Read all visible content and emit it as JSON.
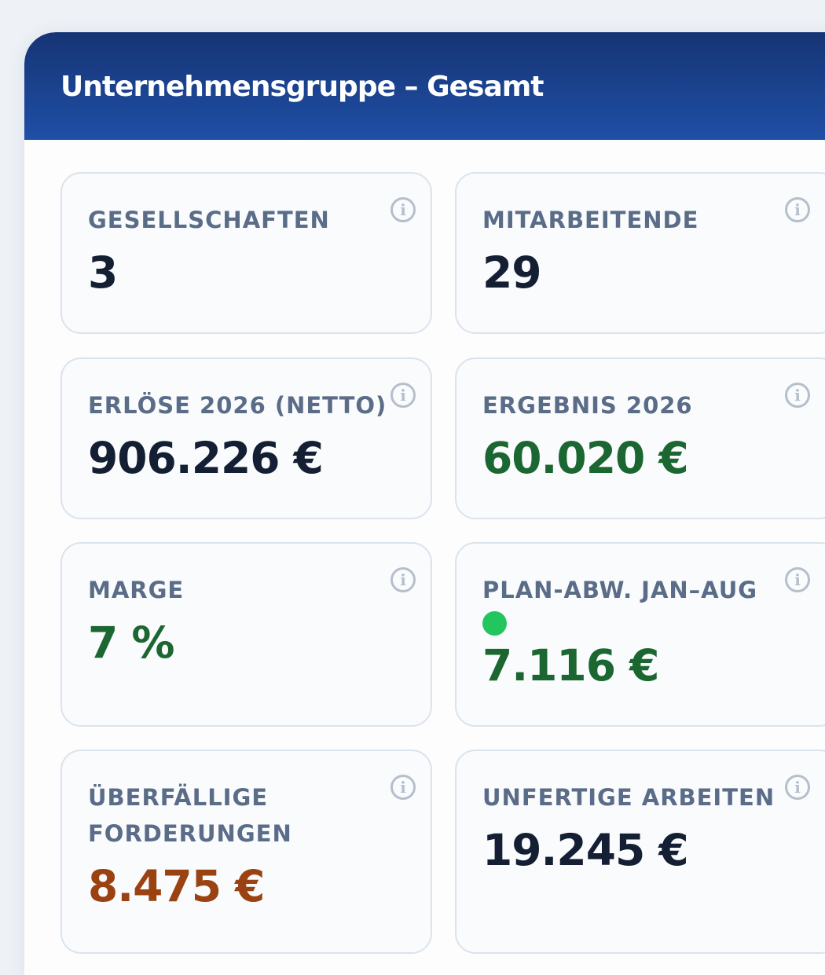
{
  "panel": {
    "title": "Unternehmensgruppe – Gesamt"
  },
  "cards": {
    "gesellschaften": {
      "label": "GESELLSCHAFTEN",
      "value": "3"
    },
    "mitarbeitende": {
      "label": "MITARBEITENDE",
      "value": "29"
    },
    "erloese": {
      "label": "ERLÖSE 2026 (NETTO)",
      "value": "906.226 €"
    },
    "ergebnis": {
      "label": "ERGEBNIS 2026",
      "value": "60.020 €"
    },
    "marge": {
      "label": "MARGE",
      "value": "7 %"
    },
    "plan_abw": {
      "label": "PLAN-ABW. JAN–AUG",
      "value": "7.116 €",
      "status_color": "#22c55e"
    },
    "ueberfaellig": {
      "label": "ÜBERFÄLLIGE FORDERUNGEN",
      "value": "8.475 €"
    },
    "unfertig": {
      "label": "UNFERTIGE ARBEITEN",
      "value": "19.245 €"
    }
  },
  "icons": {
    "info": "info-icon"
  },
  "colors": {
    "header_start": "#163474",
    "header_end": "#1f4fa6",
    "value_dark": "#141f33",
    "value_positive": "#1b6631",
    "value_warning": "#9a4212",
    "status_ok": "#22c55e"
  }
}
